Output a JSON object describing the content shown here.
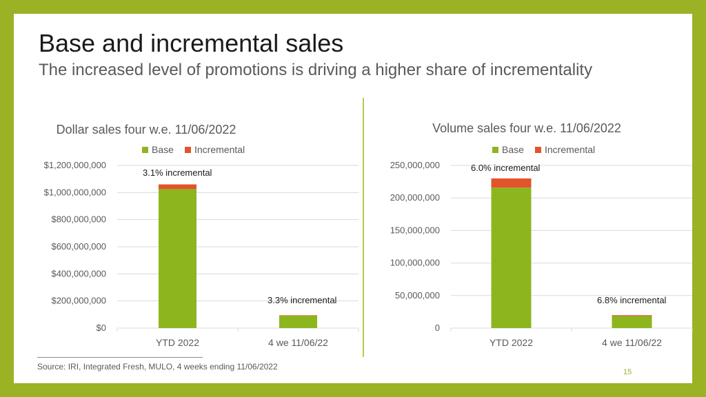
{
  "slide": {
    "title": "Base and incremental sales",
    "subtitle": "The increased level of promotions is driving a higher share of incrementality",
    "source": "Source: IRI, Integrated Fresh, MULO, 4 weeks ending 11/06/2022",
    "page_number": "15"
  },
  "colors": {
    "base": "#8db61e",
    "incremental": "#e2542b",
    "frame": "#9bb224",
    "grid": "#d9d9d9"
  },
  "chart_data": [
    {
      "type": "bar",
      "stacked": true,
      "title": "Dollar sales four w.e. 11/06/2022",
      "legend": [
        "Base",
        "Incremental"
      ],
      "legend_position": "top",
      "categories": [
        "YTD 2022",
        "4 we 11/06/22"
      ],
      "series": [
        {
          "name": "Base",
          "values": [
            1025000000,
            92000000
          ]
        },
        {
          "name": "Incremental",
          "values": [
            35000000,
            3000000
          ]
        }
      ],
      "annotations": [
        "3.1% incremental",
        "3.3% incremental"
      ],
      "yticks": [
        "$0",
        "$200,000,000",
        "$400,000,000",
        "$600,000,000",
        "$800,000,000",
        "$1,000,000,000",
        "$1,200,000,000"
      ],
      "ylim": [
        0,
        1200000000
      ],
      "grid": true
    },
    {
      "type": "bar",
      "stacked": true,
      "title": "Volume sales four w.e. 11/06/2022",
      "legend": [
        "Base",
        "Incremental"
      ],
      "legend_position": "top",
      "categories": [
        "YTD 2022",
        "4 we 11/06/22"
      ],
      "series": [
        {
          "name": "Base",
          "values": [
            216000000,
            18500000
          ]
        },
        {
          "name": "Incremental",
          "values": [
            14000000,
            1300000
          ]
        }
      ],
      "annotations": [
        "6.0% incremental",
        "6.8% incremental"
      ],
      "yticks": [
        "0",
        "50,000,000",
        "100,000,000",
        "150,000,000",
        "200,000,000",
        "250,000,000"
      ],
      "ylim": [
        0,
        250000000
      ],
      "grid": true
    }
  ]
}
